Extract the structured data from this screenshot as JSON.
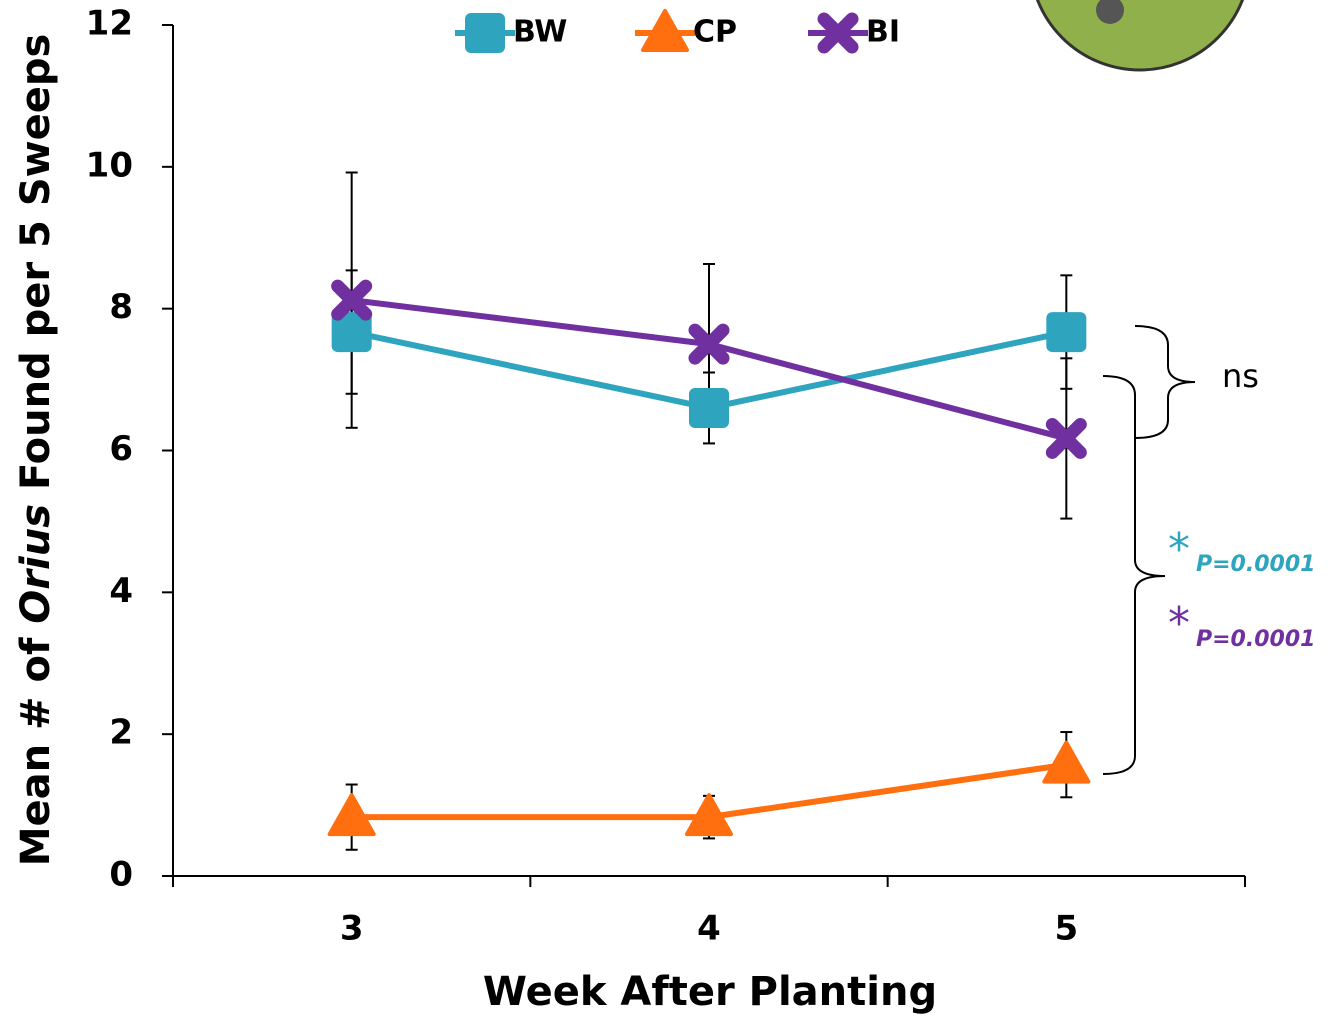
{
  "chart_data": {
    "type": "line",
    "x_label": "Week After Planting",
    "y_label": [
      "Mean # of ",
      "Orius",
      " Found per 5 Sweeps"
    ],
    "categories": [
      "3",
      "4",
      "5"
    ],
    "series": [
      {
        "name": "BW",
        "color": "#2ea4bf",
        "marker": "square",
        "values": [
          7.67,
          6.6,
          7.67
        ],
        "errors": [
          0.87,
          0.5,
          0.8
        ]
      },
      {
        "name": "CP",
        "color": "#ff6f0f",
        "marker": "triangle",
        "values": [
          0.83,
          0.83,
          1.57
        ],
        "errors": [
          0.46,
          0.3,
          0.46
        ]
      },
      {
        "name": "BI",
        "color": "#7030a0",
        "marker": "x",
        "values": [
          8.12,
          7.5,
          6.17
        ],
        "errors": [
          1.8,
          1.13,
          1.13
        ]
      }
    ],
    "ylim": [
      0,
      12
    ],
    "yticks": [
      0,
      2,
      4,
      6,
      8,
      10,
      12
    ],
    "annotations": [
      "ns",
      "*",
      "P=0.0001",
      "*",
      "P=0.0001"
    ]
  }
}
